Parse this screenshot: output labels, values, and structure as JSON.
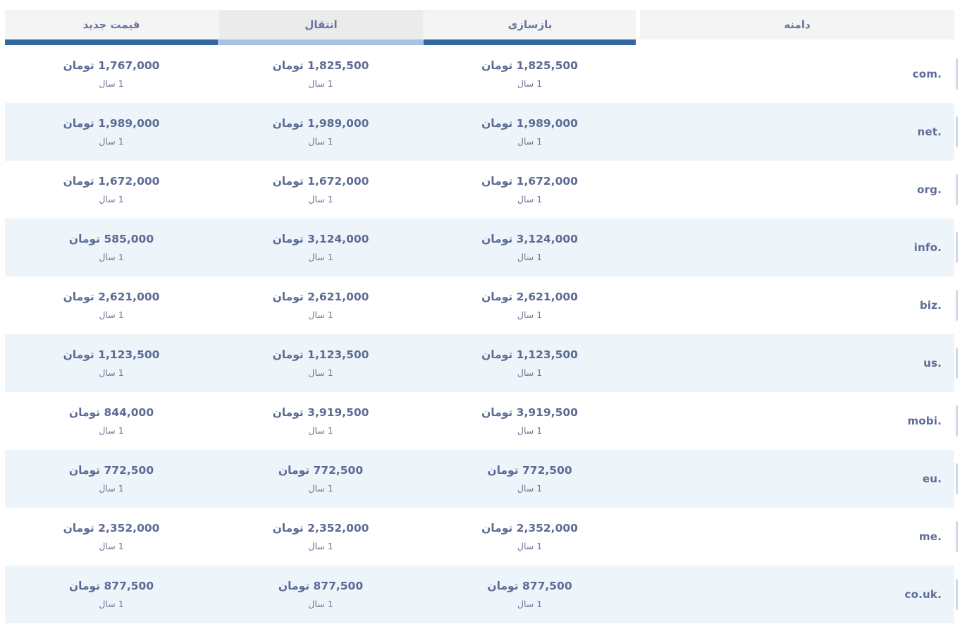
{
  "colors": {
    "bar_dark": "#33699e",
    "bar_light": "#a6c4e2",
    "header_bg": "#f4f4f4",
    "header_active_bg": "#ebebeb",
    "row_alt_bg": "#edf4fa",
    "price_text": "#5d6b94",
    "domain_text": "#5e6c96"
  },
  "header": {
    "columns": [
      {
        "id": "domain",
        "label": "دامنه",
        "active": false
      },
      {
        "id": "renew",
        "label": "بازسازی",
        "active": false
      },
      {
        "id": "transfer",
        "label": "انتقال",
        "active": true
      },
      {
        "id": "register",
        "label": "قیمت جدید",
        "active": false
      }
    ]
  },
  "labels": {
    "currency": "تومان",
    "period": "1 سال"
  },
  "rows": [
    {
      "domain": ".com",
      "renew": "1,825,500",
      "transfer": "1,825,500",
      "register": "1,767,000"
    },
    {
      "domain": ".net",
      "renew": "1,989,000",
      "transfer": "1,989,000",
      "register": "1,989,000"
    },
    {
      "domain": ".org",
      "renew": "1,672,000",
      "transfer": "1,672,000",
      "register": "1,672,000"
    },
    {
      "domain": ".info",
      "renew": "3,124,000",
      "transfer": "3,124,000",
      "register": "585,000"
    },
    {
      "domain": ".biz",
      "renew": "2,621,000",
      "transfer": "2,621,000",
      "register": "2,621,000"
    },
    {
      "domain": ".us",
      "renew": "1,123,500",
      "transfer": "1,123,500",
      "register": "1,123,500"
    },
    {
      "domain": ".mobi",
      "renew": "3,919,500",
      "transfer": "3,919,500",
      "register": "844,000"
    },
    {
      "domain": ".eu",
      "renew": "772,500",
      "transfer": "772,500",
      "register": "772,500"
    },
    {
      "domain": ".me",
      "renew": "2,352,000",
      "transfer": "2,352,000",
      "register": "2,352,000"
    },
    {
      "domain": ".co.uk",
      "renew": "877,500",
      "transfer": "877,500",
      "register": "877,500"
    }
  ]
}
